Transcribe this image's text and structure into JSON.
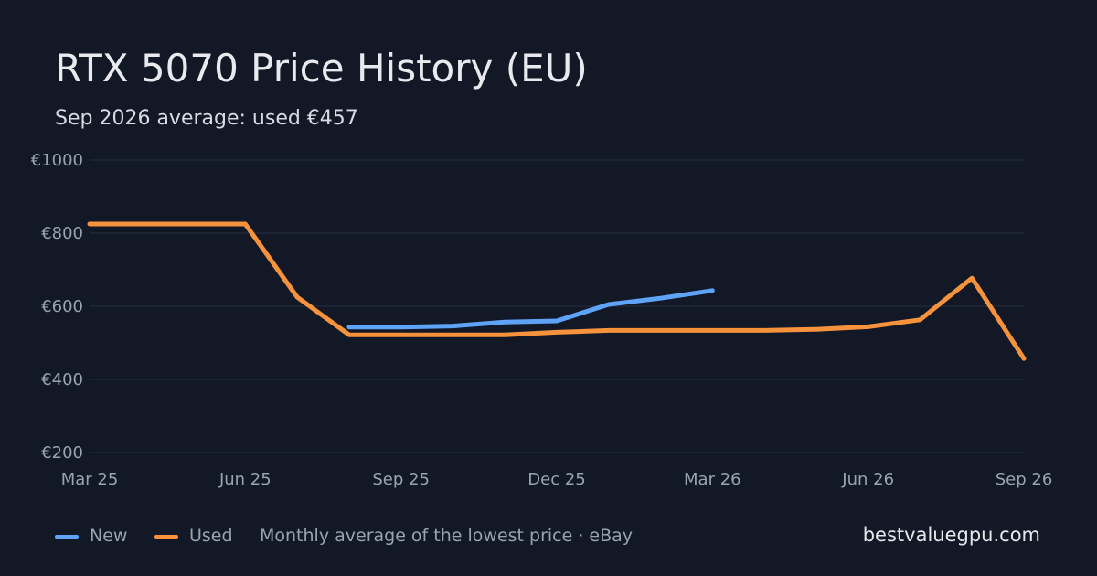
{
  "title": "RTX 5070 Price History (EU)",
  "subtitle": "Sep 2026 average: used €457",
  "legend": {
    "new_label": "New",
    "used_label": "Used",
    "note": "Monthly average of the lowest price · eBay"
  },
  "brand": "bestvaluegpu.com",
  "colors": {
    "background": "#121826",
    "new": "#5ea3f7",
    "used": "#f6923c",
    "grid": "#263041"
  },
  "chart_data": {
    "type": "line",
    "x": [
      "Mar 25",
      "Apr 25",
      "May 25",
      "Jun 25",
      "Jul 25",
      "Aug 25",
      "Sep 25",
      "Oct 25",
      "Nov 25",
      "Dec 25",
      "Jan 26",
      "Feb 26",
      "Mar 26",
      "Apr 26",
      "May 26",
      "Jun 26",
      "Jul 26",
      "Aug 26",
      "Sep 26"
    ],
    "x_tick_labels": [
      "Mar 25",
      "Jun 25",
      "Sep 25",
      "Dec 25",
      "Mar 26",
      "Jun 26",
      "Sep 26"
    ],
    "y_tick_labels": [
      "€1000",
      "€800",
      "€600",
      "€400",
      "€200"
    ],
    "y_ticks": [
      1000,
      800,
      600,
      400,
      200
    ],
    "ylim": [
      200,
      1000
    ],
    "grid": true,
    "legend_position": "bottom-left",
    "series": [
      {
        "name": "New",
        "values": [
          null,
          null,
          null,
          null,
          null,
          543,
          543,
          546,
          557,
          560,
          605,
          622,
          643,
          null,
          null,
          null,
          null,
          null,
          null
        ]
      },
      {
        "name": "Used",
        "values": [
          825,
          825,
          825,
          825,
          625,
          522,
          522,
          522,
          522,
          529,
          534,
          534,
          534,
          534,
          537,
          544,
          563,
          677,
          457
        ]
      }
    ]
  }
}
